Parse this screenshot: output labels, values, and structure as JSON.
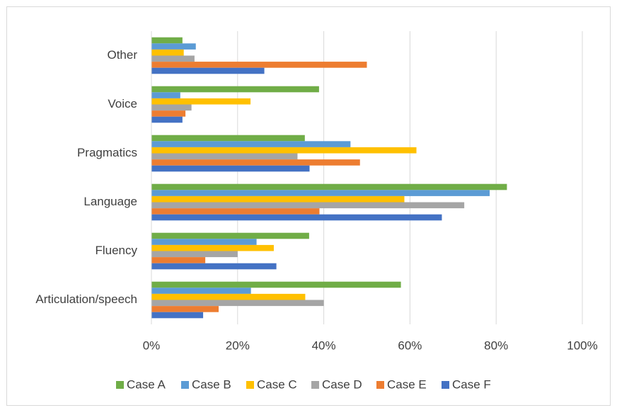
{
  "chart_data": {
    "type": "bar",
    "orientation": "horizontal",
    "categories": [
      "Articulation/speech",
      "Fluency",
      "Language",
      "Pragmatics",
      "Voice",
      "Other"
    ],
    "series": [
      {
        "name": "Case A",
        "color": "#70ad47",
        "values": [
          57.9,
          36.6,
          82.5,
          35.6,
          38.9,
          7.2
        ]
      },
      {
        "name": "Case B",
        "color": "#5b9bd5",
        "values": [
          23.1,
          24.4,
          78.5,
          46.2,
          6.7,
          10.3
        ]
      },
      {
        "name": "Case C",
        "color": "#ffc000",
        "values": [
          35.7,
          28.4,
          58.7,
          61.5,
          23,
          7.5
        ]
      },
      {
        "name": "Case D",
        "color": "#a5a5a5",
        "values": [
          40,
          20,
          72.6,
          33.9,
          9.3,
          10
        ]
      },
      {
        "name": "Case E",
        "color": "#ed7d31",
        "values": [
          15.6,
          12.5,
          39,
          48.4,
          7.9,
          50
        ]
      },
      {
        "name": "Case F",
        "color": "#4472c4",
        "values": [
          12,
          29,
          67.4,
          36.7,
          7.2,
          26.2
        ]
      }
    ],
    "xlim": [
      0,
      100
    ],
    "xticks": [
      {
        "value": 0,
        "label": "0%"
      },
      {
        "value": 20,
        "label": "20%"
      },
      {
        "value": 40,
        "label": "40%"
      },
      {
        "value": 60,
        "label": "60%"
      },
      {
        "value": 80,
        "label": "80%"
      },
      {
        "value": 100,
        "label": "100%"
      }
    ],
    "grid": true,
    "legend": "bottom"
  }
}
